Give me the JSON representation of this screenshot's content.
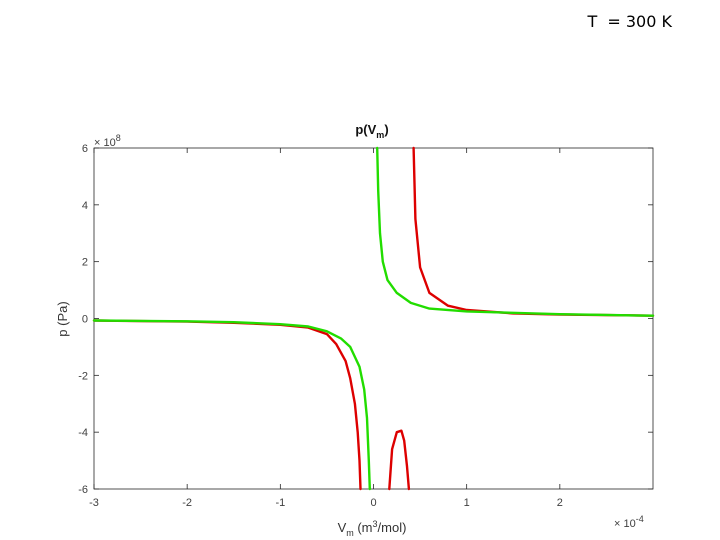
{
  "header": {
    "temperature_label": "T  = 300 K"
  },
  "chart_data": {
    "type": "line",
    "title": "p(V",
    "title_sub": "m",
    "title_end": ")",
    "xlabel": "V",
    "xlabel_sub": "m",
    "xlabel_mid": " (m",
    "xlabel_sup": "3",
    "xlabel_end": "/mol)",
    "ylabel": "p (Pa)",
    "x_multiplier": "× 10",
    "x_multiplier_exp": "-4",
    "y_multiplier": "× 10",
    "y_multiplier_exp": "8",
    "xlim": [
      -3,
      3
    ],
    "ylim": [
      -6,
      6
    ],
    "x_ticks": [
      -3,
      -2,
      -1,
      0,
      1,
      2
    ],
    "y_ticks": [
      -6,
      -4,
      -2,
      0,
      2,
      4,
      6
    ],
    "x_tick_labels": [
      "-3",
      "-2",
      "-1",
      "0",
      "1",
      "2"
    ],
    "y_tick_labels": [
      "-6",
      "-4",
      "-2",
      "0",
      "2",
      "4",
      "6"
    ],
    "grid": false,
    "series": [
      {
        "color": "#dd0000",
        "segments": [
          [
            [
              -3.0,
              -0.07
            ],
            [
              -2.0,
              -0.11
            ],
            [
              -1.5,
              -0.15
            ],
            [
              -1.0,
              -0.22
            ],
            [
              -0.7,
              -0.32
            ],
            [
              -0.5,
              -0.55
            ],
            [
              -0.4,
              -0.9
            ],
            [
              -0.3,
              -1.5
            ],
            [
              -0.25,
              -2.1
            ],
            [
              -0.2,
              -3.0
            ],
            [
              -0.17,
              -4.0
            ],
            [
              -0.15,
              -5.0
            ],
            [
              -0.14,
              -6.0
            ]
          ],
          [
            [
              0.17,
              -6.0
            ],
            [
              0.2,
              -4.6
            ],
            [
              0.25,
              -4.0
            ],
            [
              0.3,
              -3.95
            ],
            [
              0.33,
              -4.3
            ],
            [
              0.36,
              -5.2
            ],
            [
              0.38,
              -6.0
            ]
          ],
          [
            [
              0.43,
              6.0
            ],
            [
              0.45,
              3.5
            ],
            [
              0.5,
              1.8
            ],
            [
              0.6,
              0.9
            ],
            [
              0.8,
              0.45
            ],
            [
              1.0,
              0.3
            ],
            [
              1.5,
              0.18
            ],
            [
              2.0,
              0.14
            ],
            [
              3.0,
              0.1
            ]
          ]
        ]
      },
      {
        "color": "#22dd00",
        "segments": [
          [
            [
              -3.0,
              -0.07
            ],
            [
              -2.0,
              -0.1
            ],
            [
              -1.5,
              -0.13
            ],
            [
              -1.0,
              -0.2
            ],
            [
              -0.7,
              -0.28
            ],
            [
              -0.5,
              -0.45
            ],
            [
              -0.35,
              -0.7
            ],
            [
              -0.25,
              -1.0
            ],
            [
              -0.15,
              -1.7
            ],
            [
              -0.1,
              -2.5
            ],
            [
              -0.07,
              -3.5
            ],
            [
              -0.05,
              -5.0
            ],
            [
              -0.04,
              -6.0
            ]
          ],
          [
            [
              0.04,
              6.0
            ],
            [
              0.05,
              4.5
            ],
            [
              0.07,
              3.0
            ],
            [
              0.1,
              2.0
            ],
            [
              0.15,
              1.35
            ],
            [
              0.25,
              0.9
            ],
            [
              0.4,
              0.55
            ],
            [
              0.6,
              0.35
            ],
            [
              1.0,
              0.25
            ],
            [
              2.0,
              0.15
            ],
            [
              3.0,
              0.1
            ]
          ]
        ]
      }
    ]
  }
}
